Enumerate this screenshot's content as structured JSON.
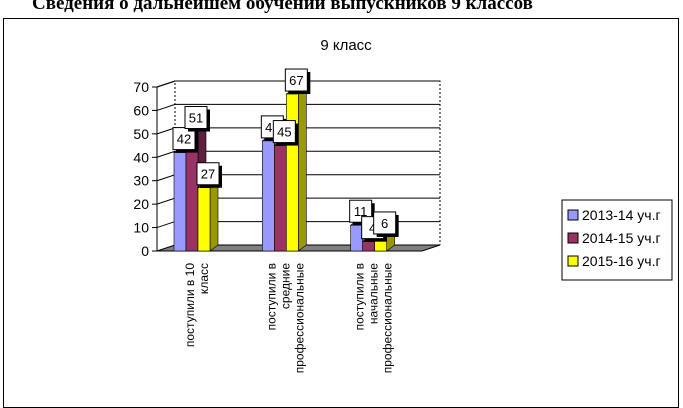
{
  "page": {
    "heading": "Сведения о дальнейшем обучении выпускников 9 классов"
  },
  "colors": {
    "series": [
      "#9999ff",
      "#993366",
      "#ffff00"
    ],
    "floor": "#808080",
    "grid": "#000000"
  },
  "chart_data": {
    "type": "bar",
    "title": "9 класс",
    "categories": [
      [
        "поступили в 10",
        "класс"
      ],
      [
        "поступили в",
        "средние",
        "профессиональные"
      ],
      [
        "поступили в",
        "начальные",
        "профессиональные"
      ]
    ],
    "series": [
      {
        "name": "2013-14 уч.г",
        "values": [
          42,
          47,
          11
        ]
      },
      {
        "name": "2014-15 уч.г",
        "values": [
          51,
          45,
          4
        ]
      },
      {
        "name": "2015-16 уч.г",
        "values": [
          27,
          67,
          6
        ]
      }
    ],
    "ylim": [
      0,
      70
    ],
    "yticks": [
      0,
      10,
      20,
      30,
      40,
      50,
      60,
      70
    ],
    "grid": true,
    "legend": "right",
    "style": "3d-clustered-column"
  }
}
